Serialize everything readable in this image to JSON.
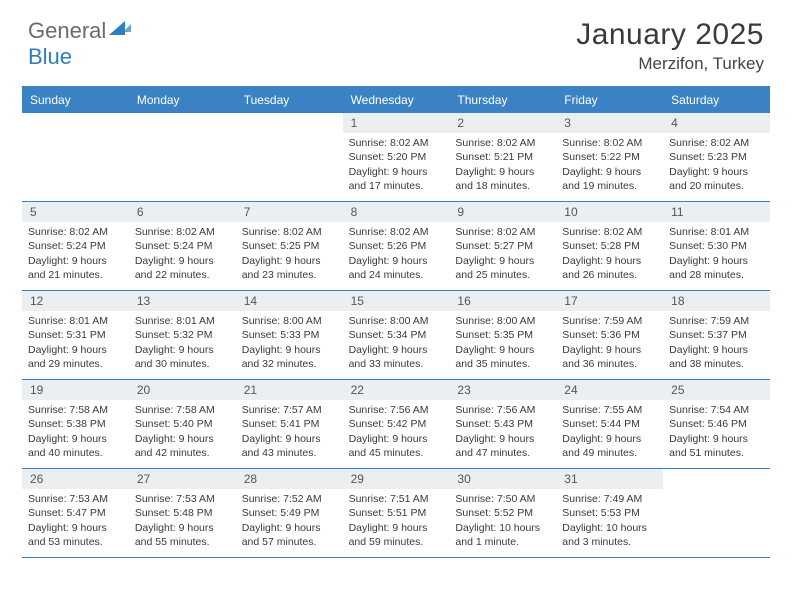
{
  "logo": {
    "text1": "General",
    "text2": "Blue"
  },
  "title": "January 2025",
  "location": "Merzifon, Turkey",
  "colors": {
    "accent": "#3b82c4",
    "band": "#eceff2",
    "text": "#3a3a3a",
    "logo_gray": "#6b6b6b",
    "logo_blue": "#2f7ec2",
    "background": "#ffffff"
  },
  "daysOfWeek": [
    "Sunday",
    "Monday",
    "Tuesday",
    "Wednesday",
    "Thursday",
    "Friday",
    "Saturday"
  ],
  "weeks": [
    [
      {
        "n": "",
        "sr": "",
        "ss": "",
        "dl": ""
      },
      {
        "n": "",
        "sr": "",
        "ss": "",
        "dl": ""
      },
      {
        "n": "",
        "sr": "",
        "ss": "",
        "dl": ""
      },
      {
        "n": "1",
        "sr": "Sunrise: 8:02 AM",
        "ss": "Sunset: 5:20 PM",
        "dl": "Daylight: 9 hours and 17 minutes."
      },
      {
        "n": "2",
        "sr": "Sunrise: 8:02 AM",
        "ss": "Sunset: 5:21 PM",
        "dl": "Daylight: 9 hours and 18 minutes."
      },
      {
        "n": "3",
        "sr": "Sunrise: 8:02 AM",
        "ss": "Sunset: 5:22 PM",
        "dl": "Daylight: 9 hours and 19 minutes."
      },
      {
        "n": "4",
        "sr": "Sunrise: 8:02 AM",
        "ss": "Sunset: 5:23 PM",
        "dl": "Daylight: 9 hours and 20 minutes."
      }
    ],
    [
      {
        "n": "5",
        "sr": "Sunrise: 8:02 AM",
        "ss": "Sunset: 5:24 PM",
        "dl": "Daylight: 9 hours and 21 minutes."
      },
      {
        "n": "6",
        "sr": "Sunrise: 8:02 AM",
        "ss": "Sunset: 5:24 PM",
        "dl": "Daylight: 9 hours and 22 minutes."
      },
      {
        "n": "7",
        "sr": "Sunrise: 8:02 AM",
        "ss": "Sunset: 5:25 PM",
        "dl": "Daylight: 9 hours and 23 minutes."
      },
      {
        "n": "8",
        "sr": "Sunrise: 8:02 AM",
        "ss": "Sunset: 5:26 PM",
        "dl": "Daylight: 9 hours and 24 minutes."
      },
      {
        "n": "9",
        "sr": "Sunrise: 8:02 AM",
        "ss": "Sunset: 5:27 PM",
        "dl": "Daylight: 9 hours and 25 minutes."
      },
      {
        "n": "10",
        "sr": "Sunrise: 8:02 AM",
        "ss": "Sunset: 5:28 PM",
        "dl": "Daylight: 9 hours and 26 minutes."
      },
      {
        "n": "11",
        "sr": "Sunrise: 8:01 AM",
        "ss": "Sunset: 5:30 PM",
        "dl": "Daylight: 9 hours and 28 minutes."
      }
    ],
    [
      {
        "n": "12",
        "sr": "Sunrise: 8:01 AM",
        "ss": "Sunset: 5:31 PM",
        "dl": "Daylight: 9 hours and 29 minutes."
      },
      {
        "n": "13",
        "sr": "Sunrise: 8:01 AM",
        "ss": "Sunset: 5:32 PM",
        "dl": "Daylight: 9 hours and 30 minutes."
      },
      {
        "n": "14",
        "sr": "Sunrise: 8:00 AM",
        "ss": "Sunset: 5:33 PM",
        "dl": "Daylight: 9 hours and 32 minutes."
      },
      {
        "n": "15",
        "sr": "Sunrise: 8:00 AM",
        "ss": "Sunset: 5:34 PM",
        "dl": "Daylight: 9 hours and 33 minutes."
      },
      {
        "n": "16",
        "sr": "Sunrise: 8:00 AM",
        "ss": "Sunset: 5:35 PM",
        "dl": "Daylight: 9 hours and 35 minutes."
      },
      {
        "n": "17",
        "sr": "Sunrise: 7:59 AM",
        "ss": "Sunset: 5:36 PM",
        "dl": "Daylight: 9 hours and 36 minutes."
      },
      {
        "n": "18",
        "sr": "Sunrise: 7:59 AM",
        "ss": "Sunset: 5:37 PM",
        "dl": "Daylight: 9 hours and 38 minutes."
      }
    ],
    [
      {
        "n": "19",
        "sr": "Sunrise: 7:58 AM",
        "ss": "Sunset: 5:38 PM",
        "dl": "Daylight: 9 hours and 40 minutes."
      },
      {
        "n": "20",
        "sr": "Sunrise: 7:58 AM",
        "ss": "Sunset: 5:40 PM",
        "dl": "Daylight: 9 hours and 42 minutes."
      },
      {
        "n": "21",
        "sr": "Sunrise: 7:57 AM",
        "ss": "Sunset: 5:41 PM",
        "dl": "Daylight: 9 hours and 43 minutes."
      },
      {
        "n": "22",
        "sr": "Sunrise: 7:56 AM",
        "ss": "Sunset: 5:42 PM",
        "dl": "Daylight: 9 hours and 45 minutes."
      },
      {
        "n": "23",
        "sr": "Sunrise: 7:56 AM",
        "ss": "Sunset: 5:43 PM",
        "dl": "Daylight: 9 hours and 47 minutes."
      },
      {
        "n": "24",
        "sr": "Sunrise: 7:55 AM",
        "ss": "Sunset: 5:44 PM",
        "dl": "Daylight: 9 hours and 49 minutes."
      },
      {
        "n": "25",
        "sr": "Sunrise: 7:54 AM",
        "ss": "Sunset: 5:46 PM",
        "dl": "Daylight: 9 hours and 51 minutes."
      }
    ],
    [
      {
        "n": "26",
        "sr": "Sunrise: 7:53 AM",
        "ss": "Sunset: 5:47 PM",
        "dl": "Daylight: 9 hours and 53 minutes."
      },
      {
        "n": "27",
        "sr": "Sunrise: 7:53 AM",
        "ss": "Sunset: 5:48 PM",
        "dl": "Daylight: 9 hours and 55 minutes."
      },
      {
        "n": "28",
        "sr": "Sunrise: 7:52 AM",
        "ss": "Sunset: 5:49 PM",
        "dl": "Daylight: 9 hours and 57 minutes."
      },
      {
        "n": "29",
        "sr": "Sunrise: 7:51 AM",
        "ss": "Sunset: 5:51 PM",
        "dl": "Daylight: 9 hours and 59 minutes."
      },
      {
        "n": "30",
        "sr": "Sunrise: 7:50 AM",
        "ss": "Sunset: 5:52 PM",
        "dl": "Daylight: 10 hours and 1 minute."
      },
      {
        "n": "31",
        "sr": "Sunrise: 7:49 AM",
        "ss": "Sunset: 5:53 PM",
        "dl": "Daylight: 10 hours and 3 minutes."
      },
      {
        "n": "",
        "sr": "",
        "ss": "",
        "dl": ""
      }
    ]
  ]
}
